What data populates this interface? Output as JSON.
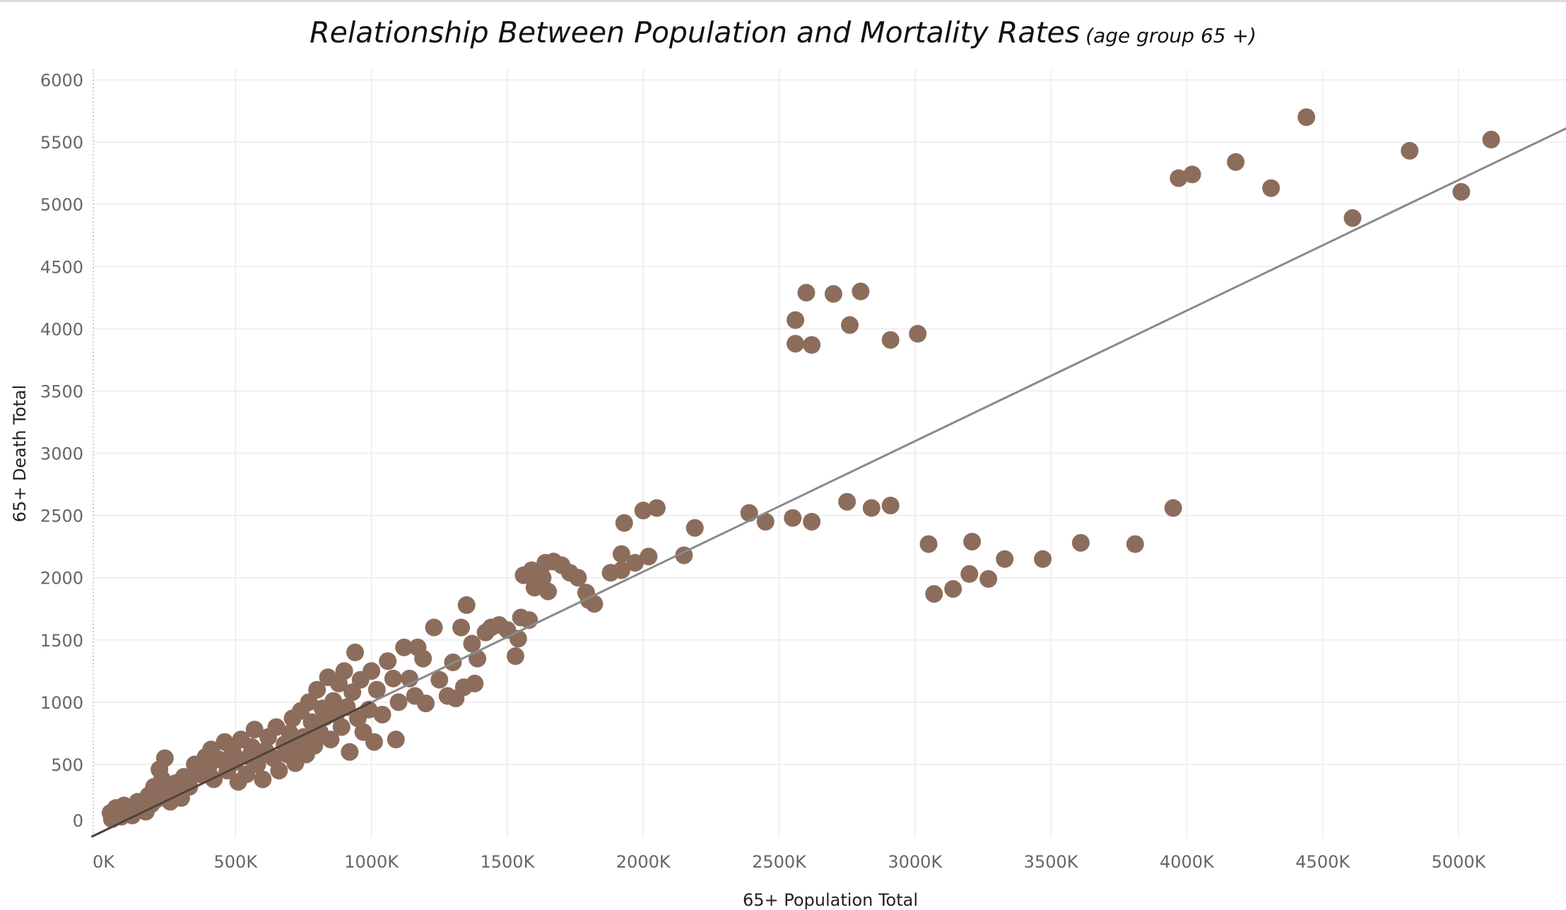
{
  "chart_data": {
    "type": "scatter",
    "title": "Relationship Between Population and Mortality Rates",
    "subtitle": "(age group 65 +)",
    "xlabel": "65+ Population Total",
    "ylabel": "65+ Death Total",
    "xlim": [
      0,
      5400000
    ],
    "ylim": [
      0,
      6000
    ],
    "x_ticks": [
      0,
      500000,
      1000000,
      1500000,
      2000000,
      2500000,
      3000000,
      3500000,
      4000000,
      4500000,
      5000000
    ],
    "x_tick_labels": [
      "0K",
      "500K",
      "1000K",
      "1500K",
      "2000K",
      "2500K",
      "3000K",
      "3500K",
      "4000K",
      "4500K",
      "5000K"
    ],
    "y_ticks": [
      0,
      500,
      1000,
      1500,
      2000,
      2500,
      3000,
      3500,
      4000,
      4500,
      5000,
      5500,
      6000
    ],
    "y_tick_labels": [
      "0",
      "500",
      "1000",
      "1500",
      "2000",
      "2500",
      "3000",
      "3500",
      "4000",
      "4500",
      "5000",
      "5500",
      "6000"
    ],
    "grid": true,
    "point_color": "#8c6d5c",
    "trend_color": "#8a8a8a",
    "trend_line": {
      "slope": 0.001049,
      "intercept": -50
    },
    "series": [
      {
        "name": "65+ Death Total",
        "points": [
          [
            40000,
            110
          ],
          [
            45000,
            60
          ],
          [
            60000,
            150
          ],
          [
            80000,
            80
          ],
          [
            90000,
            170
          ],
          [
            100000,
            130
          ],
          [
            120000,
            90
          ],
          [
            140000,
            200
          ],
          [
            150000,
            160
          ],
          [
            170000,
            120
          ],
          [
            180000,
            250
          ],
          [
            190000,
            180
          ],
          [
            200000,
            320
          ],
          [
            210000,
            220
          ],
          [
            220000,
            460
          ],
          [
            230000,
            380
          ],
          [
            240000,
            550
          ],
          [
            250000,
            280
          ],
          [
            260000,
            200
          ],
          [
            280000,
            350
          ],
          [
            300000,
            230
          ],
          [
            310000,
            400
          ],
          [
            330000,
            320
          ],
          [
            350000,
            500
          ],
          [
            370000,
            420
          ],
          [
            390000,
            560
          ],
          [
            400000,
            470
          ],
          [
            410000,
            620
          ],
          [
            420000,
            380
          ],
          [
            440000,
            540
          ],
          [
            460000,
            680
          ],
          [
            470000,
            450
          ],
          [
            490000,
            600
          ],
          [
            500000,
            520
          ],
          [
            510000,
            360
          ],
          [
            520000,
            700
          ],
          [
            540000,
            420
          ],
          [
            550000,
            560
          ],
          [
            560000,
            640
          ],
          [
            570000,
            780
          ],
          [
            580000,
            500
          ],
          [
            600000,
            380
          ],
          [
            610000,
            610
          ],
          [
            620000,
            720
          ],
          [
            640000,
            550
          ],
          [
            650000,
            800
          ],
          [
            660000,
            450
          ],
          [
            680000,
            660
          ],
          [
            690000,
            580
          ],
          [
            700000,
            750
          ],
          [
            710000,
            870
          ],
          [
            720000,
            510
          ],
          [
            730000,
            640
          ],
          [
            740000,
            930
          ],
          [
            750000,
            720
          ],
          [
            760000,
            580
          ],
          [
            770000,
            1000
          ],
          [
            780000,
            840
          ],
          [
            790000,
            650
          ],
          [
            800000,
            1100
          ],
          [
            810000,
            760
          ],
          [
            820000,
            950
          ],
          [
            830000,
            880
          ],
          [
            840000,
            1200
          ],
          [
            850000,
            700
          ],
          [
            860000,
            1010
          ],
          [
            870000,
            900
          ],
          [
            880000,
            1150
          ],
          [
            890000,
            800
          ],
          [
            900000,
            1250
          ],
          [
            910000,
            960
          ],
          [
            920000,
            600
          ],
          [
            930000,
            1080
          ],
          [
            940000,
            1400
          ],
          [
            950000,
            870
          ],
          [
            960000,
            1180
          ],
          [
            970000,
            760
          ],
          [
            990000,
            940
          ],
          [
            1000000,
            1250
          ],
          [
            1010000,
            680
          ],
          [
            1020000,
            1100
          ],
          [
            1040000,
            900
          ],
          [
            1060000,
            1330
          ],
          [
            1080000,
            1190
          ],
          [
            1090000,
            700
          ],
          [
            1100000,
            1000
          ],
          [
            1120000,
            1440
          ],
          [
            1140000,
            1190
          ],
          [
            1160000,
            1050
          ],
          [
            1170000,
            1440
          ],
          [
            1190000,
            1350
          ],
          [
            1200000,
            990
          ],
          [
            1230000,
            1600
          ],
          [
            1250000,
            1180
          ],
          [
            1280000,
            1050
          ],
          [
            1300000,
            1320
          ],
          [
            1310000,
            1030
          ],
          [
            1330000,
            1600
          ],
          [
            1340000,
            1120
          ],
          [
            1350000,
            1780
          ],
          [
            1370000,
            1470
          ],
          [
            1380000,
            1150
          ],
          [
            1390000,
            1350
          ],
          [
            1420000,
            1560
          ],
          [
            1440000,
            1600
          ],
          [
            1470000,
            1620
          ],
          [
            1500000,
            1580
          ],
          [
            1530000,
            1370
          ],
          [
            1540000,
            1510
          ],
          [
            1550000,
            1680
          ],
          [
            1560000,
            2020
          ],
          [
            1580000,
            1660
          ],
          [
            1590000,
            2060
          ],
          [
            1600000,
            1920
          ],
          [
            1610000,
            1980
          ],
          [
            1630000,
            2000
          ],
          [
            1640000,
            2120
          ],
          [
            1650000,
            1890
          ],
          [
            1670000,
            2130
          ],
          [
            1700000,
            2100
          ],
          [
            1730000,
            2040
          ],
          [
            1760000,
            2000
          ],
          [
            1790000,
            1880
          ],
          [
            1800000,
            1820
          ],
          [
            1820000,
            1790
          ],
          [
            1880000,
            2040
          ],
          [
            1920000,
            2060
          ],
          [
            1920000,
            2190
          ],
          [
            1930000,
            2440
          ],
          [
            1970000,
            2120
          ],
          [
            2000000,
            2540
          ],
          [
            2020000,
            2170
          ],
          [
            2050000,
            2560
          ],
          [
            2150000,
            2180
          ],
          [
            2190000,
            2400
          ],
          [
            2390000,
            2520
          ],
          [
            2450000,
            2450
          ],
          [
            2550000,
            2480
          ],
          [
            2620000,
            2450
          ],
          [
            2750000,
            2610
          ],
          [
            2840000,
            2560
          ],
          [
            2910000,
            2580
          ],
          [
            2560000,
            4070
          ],
          [
            2560000,
            3880
          ],
          [
            2600000,
            4290
          ],
          [
            2620000,
            3870
          ],
          [
            2700000,
            4280
          ],
          [
            2760000,
            4030
          ],
          [
            2800000,
            4300
          ],
          [
            2910000,
            3910
          ],
          [
            3010000,
            3960
          ],
          [
            3050000,
            2270
          ],
          [
            3070000,
            1870
          ],
          [
            3140000,
            1910
          ],
          [
            3200000,
            2030
          ],
          [
            3210000,
            2290
          ],
          [
            3270000,
            1990
          ],
          [
            3330000,
            2150
          ],
          [
            3470000,
            2150
          ],
          [
            3610000,
            2280
          ],
          [
            3810000,
            2270
          ],
          [
            3950000,
            2560
          ],
          [
            3970000,
            5210
          ],
          [
            4020000,
            5240
          ],
          [
            4180000,
            5340
          ],
          [
            4310000,
            5130
          ],
          [
            4440000,
            5700
          ],
          [
            4610000,
            4890
          ],
          [
            4820000,
            5430
          ],
          [
            5010000,
            5100
          ],
          [
            5120000,
            5520
          ]
        ]
      }
    ]
  }
}
